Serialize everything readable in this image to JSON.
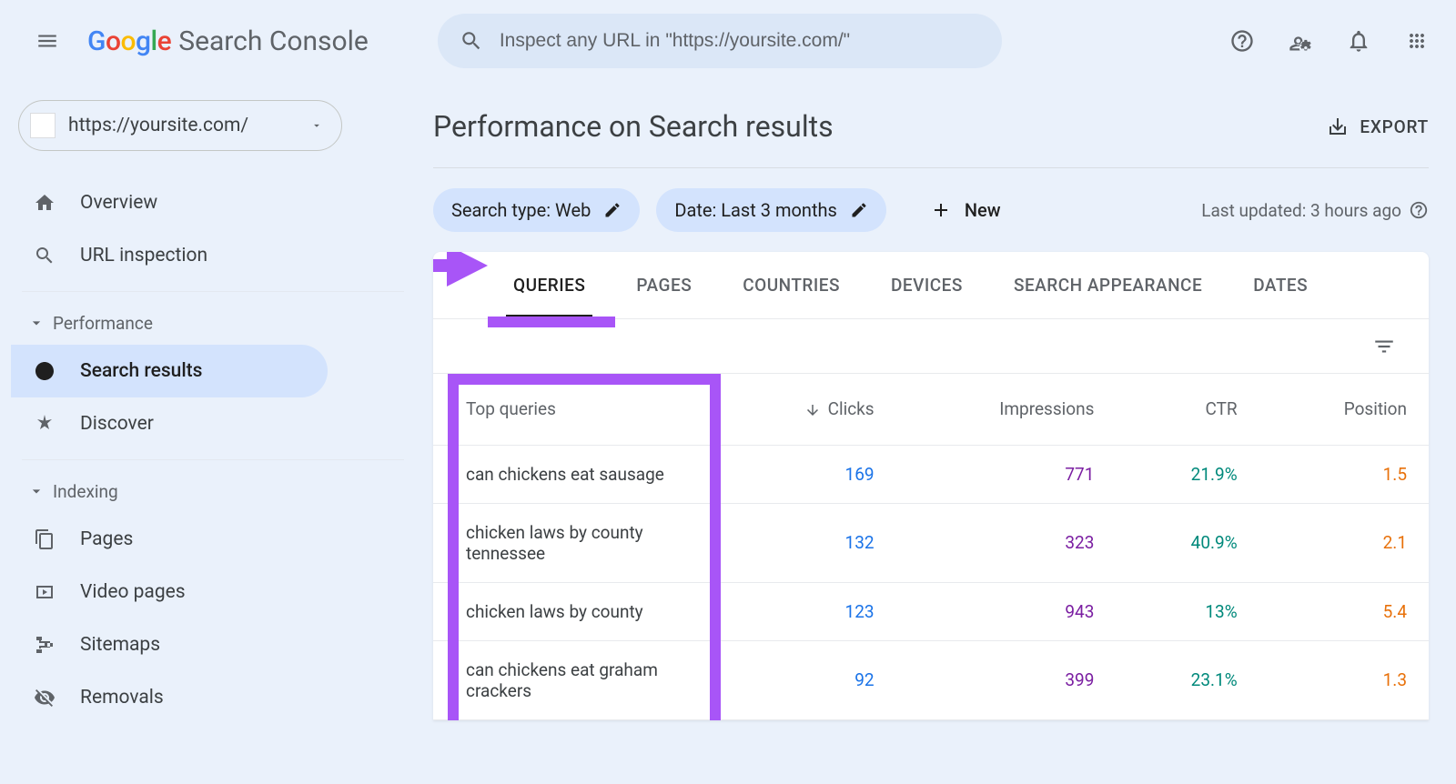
{
  "header": {
    "logo_text": "Search Console",
    "search_placeholder": "Inspect any URL in \"https://yoursite.com/\""
  },
  "sidebar": {
    "property_url": "https://yoursite.com/",
    "items_top": [
      {
        "icon": "home",
        "label": "Overview"
      },
      {
        "icon": "search",
        "label": "URL inspection"
      }
    ],
    "section_performance": "Performance",
    "items_perf": [
      {
        "icon": "g",
        "label": "Search results",
        "active": true
      },
      {
        "icon": "asterisk",
        "label": "Discover"
      }
    ],
    "section_indexing": "Indexing",
    "items_idx": [
      {
        "icon": "pages",
        "label": "Pages"
      },
      {
        "icon": "video",
        "label": "Video pages"
      },
      {
        "icon": "sitemap",
        "label": "Sitemaps"
      },
      {
        "icon": "removals",
        "label": "Removals"
      }
    ]
  },
  "main": {
    "title": "Performance on Search results",
    "export": "EXPORT",
    "filters": {
      "search_type": "Search type: Web",
      "date": "Date: Last 3 months",
      "new": "New"
    },
    "last_updated": "Last updated: 3 hours ago",
    "tabs": [
      "QUERIES",
      "PAGES",
      "COUNTRIES",
      "DEVICES",
      "SEARCH APPEARANCE",
      "DATES"
    ],
    "active_tab": 0,
    "table": {
      "columns": [
        "Top queries",
        "Clicks",
        "Impressions",
        "CTR",
        "Position"
      ],
      "rows": [
        {
          "query": "can chickens eat sausage",
          "clicks": "169",
          "impressions": "771",
          "ctr": "21.9%",
          "position": "1.5"
        },
        {
          "query": "chicken laws by county tennessee",
          "clicks": "132",
          "impressions": "323",
          "ctr": "40.9%",
          "position": "2.1"
        },
        {
          "query": "chicken laws by county",
          "clicks": "123",
          "impressions": "943",
          "ctr": "13%",
          "position": "5.4"
        },
        {
          "query": "can chickens eat graham crackers",
          "clicks": "92",
          "impressions": "399",
          "ctr": "23.1%",
          "position": "1.3"
        }
      ]
    }
  },
  "colors": {
    "clicks": "#1a73e8",
    "impressions": "#7b1fa2",
    "ctr": "#00897b",
    "position": "#e8710a",
    "annotation": "#a855f7",
    "chip_bg": "#d3e3fd",
    "body_bg": "#eaf1fb"
  }
}
